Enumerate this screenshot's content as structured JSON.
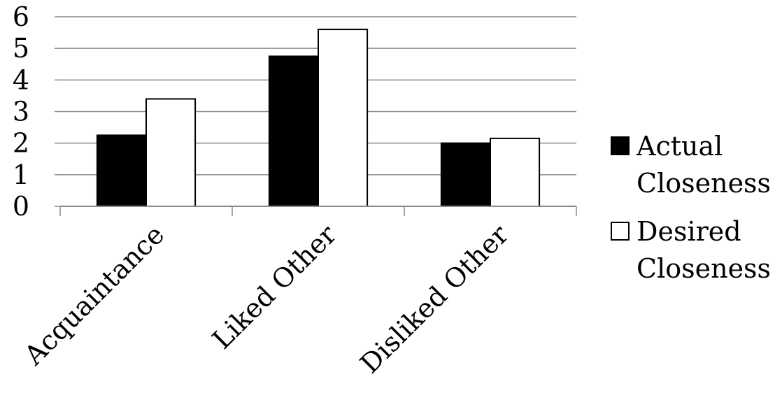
{
  "chart_data": {
    "type": "bar",
    "title": "",
    "xlabel": "",
    "ylabel": "",
    "categories": [
      "Acquaintance",
      "Liked Other",
      "Disliked Other"
    ],
    "series": [
      {
        "name": "Actual Closeness",
        "values": [
          2.25,
          4.75,
          2.0
        ],
        "color": "#000000"
      },
      {
        "name": "Desired Closeness",
        "values": [
          3.4,
          5.6,
          2.15
        ],
        "color": "#ffffff"
      }
    ],
    "ylim": [
      0,
      6
    ],
    "yticks": [
      "0",
      "1",
      "2",
      "3",
      "4",
      "5",
      "6"
    ],
    "grid": true,
    "legend": "right"
  }
}
